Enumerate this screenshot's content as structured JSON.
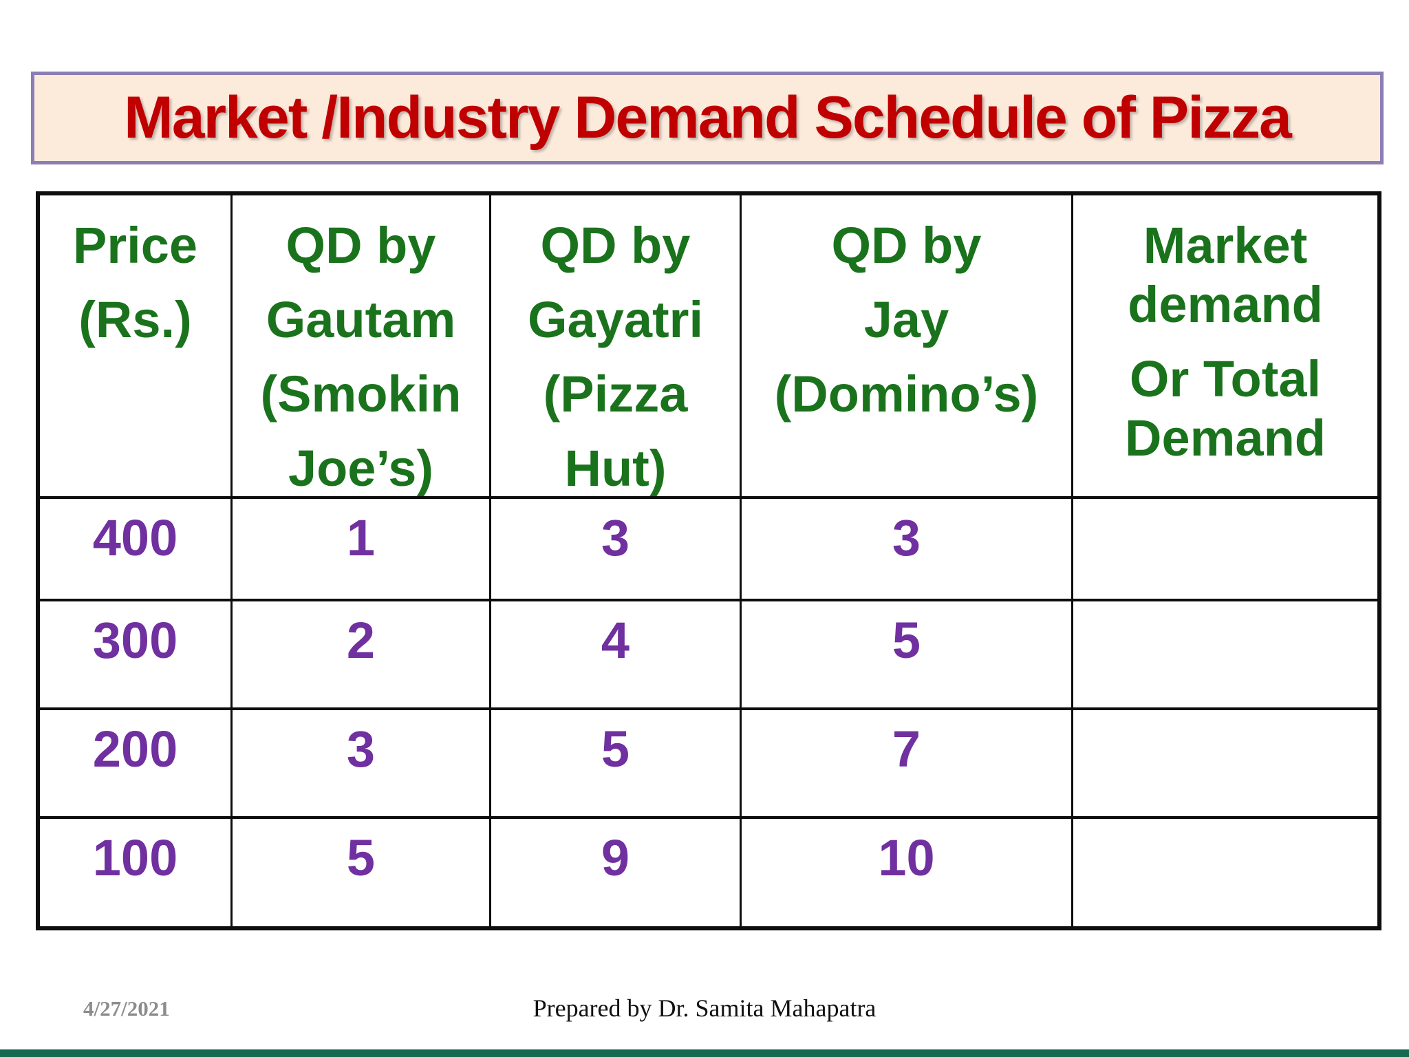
{
  "title": "Market /Industry Demand Schedule of Pizza",
  "table": {
    "headers": [
      {
        "id": "price",
        "paragraphs": [
          [
            "Price"
          ],
          [
            "(Rs.)"
          ]
        ]
      },
      {
        "id": "gautam",
        "paragraphs": [
          [
            "QD by"
          ],
          [
            "Gautam"
          ],
          [
            "(Smokin"
          ],
          [
            "Joe’s)"
          ]
        ]
      },
      {
        "id": "gayatri",
        "paragraphs": [
          [
            "QD by"
          ],
          [
            "Gayatri"
          ],
          [
            "(Pizza"
          ],
          [
            "Hut)"
          ]
        ]
      },
      {
        "id": "jay",
        "paragraphs": [
          [
            "QD by"
          ],
          [
            "Jay"
          ],
          [
            "(Domino’s)"
          ]
        ]
      },
      {
        "id": "market",
        "paragraphs": [
          [
            "Market",
            "demand"
          ],
          [
            "Or Total",
            "Demand"
          ]
        ]
      }
    ],
    "rows": [
      [
        "400",
        "1",
        "3",
        "3",
        ""
      ],
      [
        "300",
        "2",
        "4",
        "5",
        ""
      ],
      [
        "200",
        "3",
        "5",
        "7",
        ""
      ],
      [
        "100",
        "5",
        "9",
        "10",
        ""
      ]
    ]
  },
  "footer": {
    "date": "4/27/2021",
    "credit": "Prepared by Dr. Samita Mahapatra"
  },
  "colors": {
    "title_text": "#C00000",
    "title_bg": "#FCEADB",
    "title_border": "#8A7EB5",
    "header_green": "#1A731C",
    "value_purple": "#7030A0",
    "table_line": "#0D0D0D",
    "date_gray": "#8C8C8C",
    "bottom_bar": "#15694F"
  }
}
